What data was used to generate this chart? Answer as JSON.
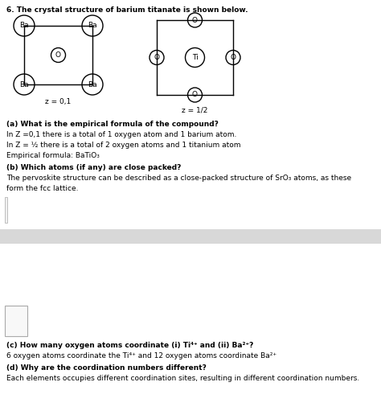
{
  "title": "6. The crystal structure of barium titanate is shown below.",
  "bg_color": "#ffffff",
  "text_color": "#000000",
  "question_a_bold": "(a) What is the empirical formula of the compound?",
  "question_a_line1": "In Z =0,1 there is a total of 1 oxygen atom and 1 barium atom.",
  "question_a_line2": "In Z = ½ there is a total of 2 oxygen atoms and 1 titanium atom",
  "question_a_line3": "Empirical formula: BaTiO₃",
  "question_b_bold": "(b) Which atoms (if any) are close packed?",
  "question_b_line1": "The pervoskite structure can be described as a close-packed structure of SrO₃ atoms, as these",
  "question_b_line2": "form the fcc lattice.",
  "question_c_bold": "(c) How many oxygen atoms coordinate (i) Ti⁴⁺ and (ii) Ba²⁺?",
  "question_c_line1": "6 oxygen atoms coordinate the Ti⁴⁺ and 12 oxygen atoms coordinate Ba²⁺",
  "question_d_bold": "(d) Why are the coordination numbers different?",
  "question_d_line1": "Each elements occupies different coordination sites, resulting in different coordination numbers.",
  "z01_label": "z = 0,1",
  "z12_label": "z = 1/2",
  "gray_band_color": "#d8d8d8",
  "box_edge_color": "#aaaaaa"
}
